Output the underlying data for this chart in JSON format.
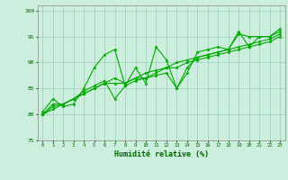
{
  "xlabel": "Humidité relative (%)",
  "bg_color": "#cceedd",
  "grid_color": "#99ccbb",
  "line_color": "#00aa00",
  "xlim": [
    -0.5,
    23.5
  ],
  "ylim": [
    75,
    101
  ],
  "yticks": [
    75,
    80,
    85,
    90,
    95,
    100
  ],
  "xticks": [
    0,
    1,
    2,
    3,
    4,
    5,
    6,
    7,
    8,
    9,
    10,
    11,
    12,
    13,
    14,
    15,
    16,
    17,
    18,
    19,
    20,
    21,
    22,
    23
  ],
  "series": [
    [
      80.5,
      83,
      81.5,
      82,
      85,
      89,
      91.5,
      92.5,
      85.5,
      89,
      86,
      93,
      90.5,
      85,
      88,
      92,
      92.5,
      93,
      92.5,
      95.5,
      95,
      95,
      95,
      96
    ],
    [
      80,
      82,
      82,
      83,
      84,
      85,
      86,
      86,
      86,
      87,
      87,
      88,
      89,
      89,
      90,
      90.5,
      91,
      91.5,
      92,
      92.5,
      93,
      93.5,
      94,
      95
    ],
    [
      80,
      81,
      82,
      83,
      84,
      85,
      86,
      87,
      86,
      87,
      88,
      88.5,
      89,
      90,
      90.5,
      91,
      91.5,
      92,
      92.5,
      93,
      93.5,
      94,
      94.5,
      95.5
    ],
    [
      80,
      81.5,
      82,
      83,
      84.5,
      85.5,
      86.5,
      83,
      85.5,
      86.5,
      87,
      87.5,
      88,
      85,
      89,
      91,
      91.5,
      92,
      92.5,
      96,
      93,
      95,
      95,
      96.5
    ]
  ]
}
